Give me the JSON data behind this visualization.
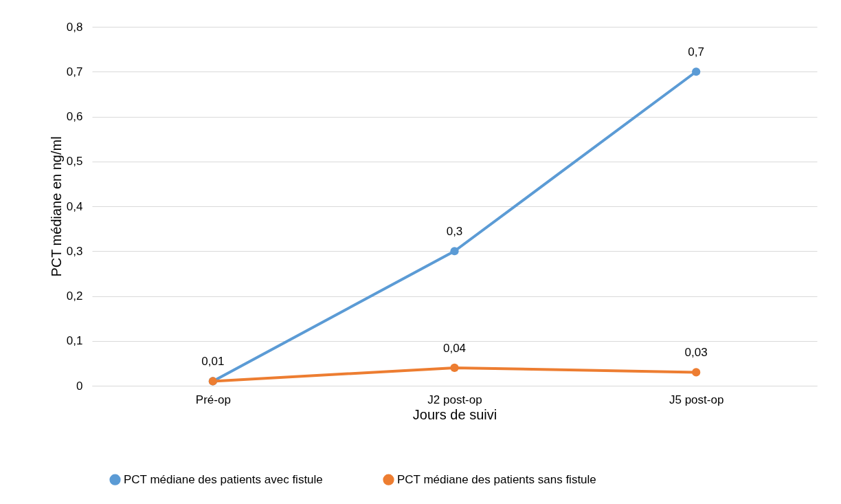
{
  "chart_data": {
    "type": "line",
    "xlabel": "Jours de suivi",
    "ylabel": "PCT médiane  en ng/ml",
    "categories": [
      "Pré-op",
      "J2 post-op",
      "J5 post-op"
    ],
    "series": [
      {
        "name": "PCT médiane des patients avec fistule",
        "color": "#5b9bd5",
        "values": [
          0.01,
          0.3,
          0.7
        ],
        "value_labels": [
          "0,01",
          "0,3",
          "0,7"
        ]
      },
      {
        "name": "PCT médiane des patients sans fistule",
        "color": "#ed7d31",
        "values": [
          0.01,
          0.04,
          0.03
        ],
        "value_labels": [
          null,
          "0,04",
          "0,03"
        ]
      }
    ],
    "ylim": [
      0,
      0.8
    ],
    "yticks": [
      0,
      {
        "value": 0.1,
        "label": "0,1"
      },
      {
        "value": 0.2,
        "label": "0,2"
      },
      {
        "value": 0.3,
        "label": "0,3"
      },
      {
        "value": 0.4,
        "label": "0,4"
      },
      {
        "value": 0.5,
        "label": "0,5"
      },
      {
        "value": 0.6,
        "label": "0,6"
      },
      {
        "value": 0.7,
        "label": "0,7"
      },
      {
        "value": 0.8,
        "label": "0,8"
      }
    ],
    "grid": "y",
    "legend": "bottom",
    "marker": "circle",
    "line_style": "solid"
  }
}
